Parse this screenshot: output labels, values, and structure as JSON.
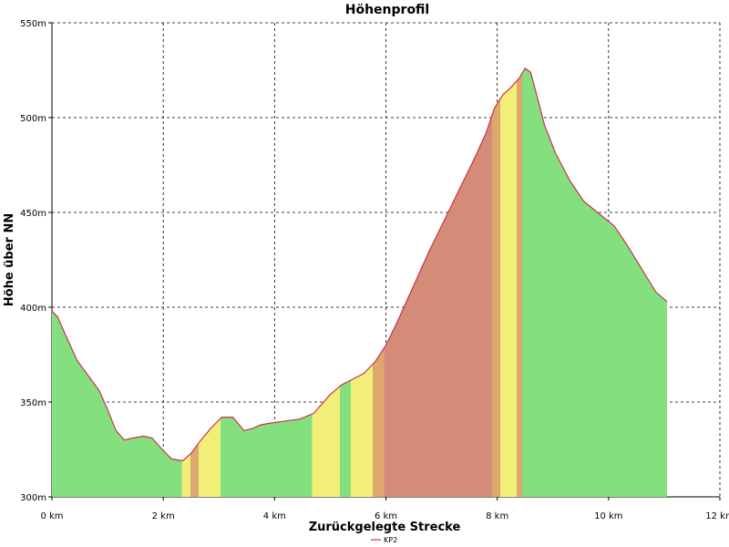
{
  "chart_data": {
    "type": "area",
    "title": "Höhenprofil",
    "xlabel": "Zurückgelegte Strecke",
    "ylabel": "Höhe über NN",
    "xlim": [
      0,
      12
    ],
    "ylim": [
      300,
      550
    ],
    "x_ticks": [
      0,
      2,
      4,
      6,
      8,
      10,
      12
    ],
    "x_tick_labels": [
      "0 km",
      "2 km",
      "4 km",
      "6 km",
      "8 km",
      "10 km",
      "12 km"
    ],
    "y_ticks": [
      300,
      350,
      400,
      450,
      500,
      550
    ],
    "y_tick_labels": [
      "300m",
      "350m",
      "400m",
      "450m",
      "500m",
      "550m"
    ],
    "grid": true,
    "legend_position": "bottom-center",
    "series": [
      {
        "name": "KP2",
        "color": "#c8324b",
        "x": [
          0,
          0.1,
          0.25,
          0.45,
          0.65,
          0.85,
          1.0,
          1.15,
          1.3,
          1.45,
          1.65,
          1.8,
          1.95,
          2.15,
          2.35,
          2.5,
          2.65,
          2.85,
          3.05,
          3.25,
          3.45,
          3.6,
          3.75,
          3.95,
          4.2,
          4.45,
          4.7,
          4.85,
          5.0,
          5.2,
          5.4,
          5.6,
          5.8,
          6.0,
          6.2,
          6.4,
          6.6,
          6.8,
          7.0,
          7.2,
          7.4,
          7.6,
          7.8,
          7.95,
          8.1,
          8.25,
          8.4,
          8.5,
          8.6,
          8.7,
          8.85,
          9.05,
          9.3,
          9.55,
          9.8,
          10.1,
          10.35,
          10.6,
          10.85,
          11.05
        ],
        "y": [
          398,
          395,
          385,
          372,
          364,
          356,
          346,
          335,
          330,
          331,
          332,
          331,
          326,
          320,
          319,
          323,
          329,
          336,
          342,
          342,
          335,
          336,
          338,
          339,
          340,
          341,
          344,
          349,
          354,
          359,
          362,
          365,
          371,
          380,
          392,
          405,
          418,
          431,
          443,
          455,
          467,
          479,
          492,
          505,
          512,
          516,
          521,
          526,
          524,
          513,
          496,
          481,
          467,
          456,
          450,
          443,
          432,
          420,
          408,
          403
        ],
        "gradient_palette": {
          "flat": "#84e07f",
          "moderate": "#f2ef78",
          "steep": "#dda86e",
          "very_steep": "#d48c78"
        }
      }
    ]
  }
}
